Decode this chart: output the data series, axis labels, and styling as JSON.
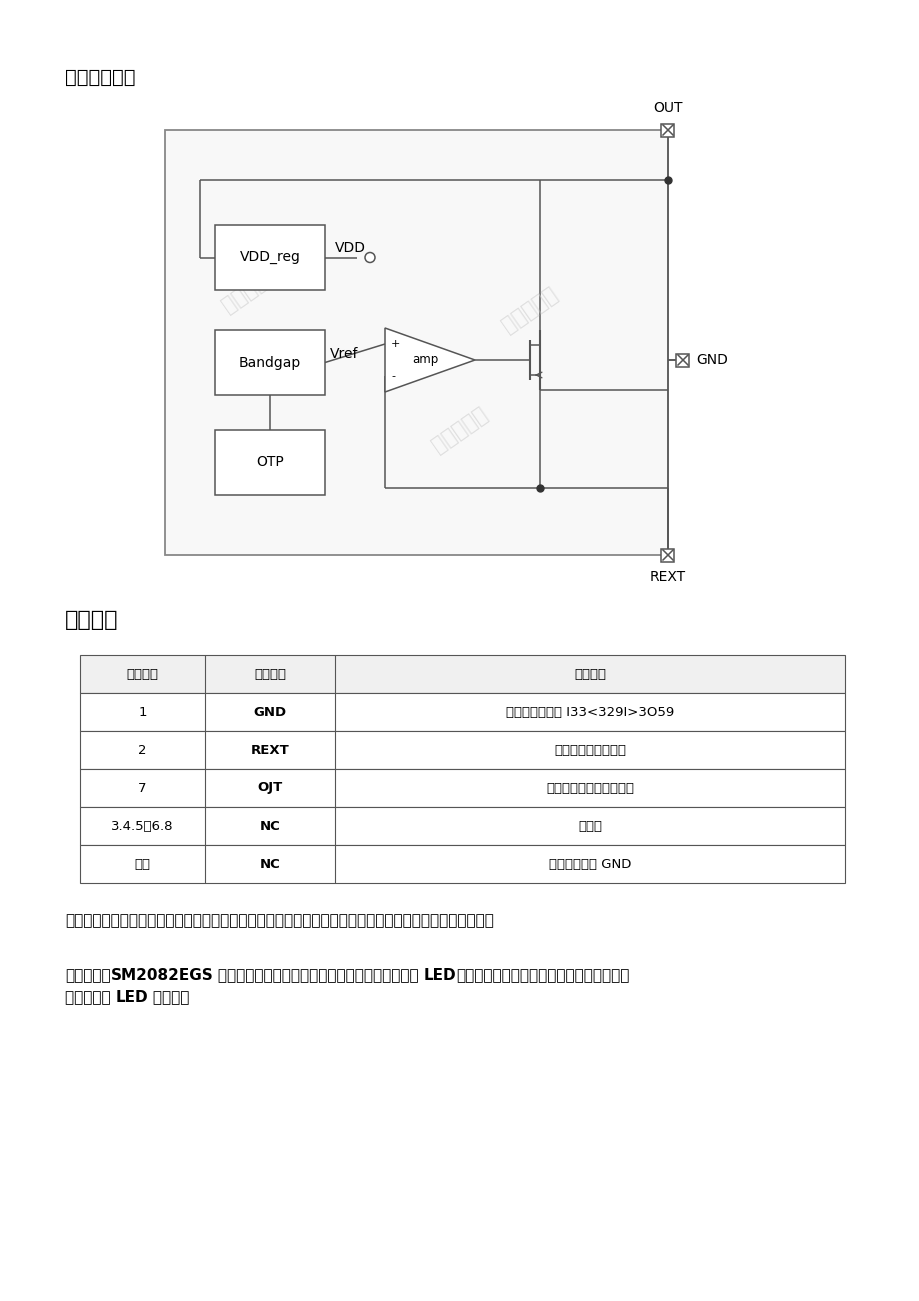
{
  "title_section": "内部功能框图",
  "pin_section": "管脚说明",
  "watermark": "钰铭科电子",
  "out_label": "OUT",
  "gnd_label": "GND",
  "rext_label": "REXT",
  "vdd_label": "VDD",
  "vref_label": "Vref",
  "amp_label": "amp",
  "vdd_reg_label": "VDD_reg",
  "bandgap_label": "Bandgap",
  "otp_label": "OTP",
  "table_headers": [
    "管脚序号",
    "管脚名称",
    "管脚说明"
  ],
  "table_rows": [
    [
      "1",
      "GND",
      "芯片地技术支持 I33<329I>3O59"
    ],
    [
      "2",
      "REXT",
      "输出电流值设置戕口"
    ],
    [
      "7",
      "OJT",
      "电源输入与恒流输出端口"
    ],
    [
      "3.4.5、6.8",
      "NC",
      "悬空脚"
    ],
    [
      "村底",
      "NC",
      "应用时村底接 GND"
    ]
  ],
  "para1": "最后，这款芯片还具有过温调节功能，这意味着它能够在温度过高时自动调节电流，防止因为过热而损坏。",
  "para2_line1_segs": [
    [
      "总的来说，",
      false
    ],
    [
      "SM2082EGS",
      true
    ],
    [
      " 是一款性能优秀、结构简单、可靠性强、成本低的 ",
      false
    ],
    [
      "LED",
      true
    ],
    [
      "控制芯片，非常适合用于各种需要高亮度和",
      false
    ]
  ],
  "para2_line2_segs": [
    [
      "稳定亮度的 ",
      false
    ],
    [
      "LED",
      true
    ],
    [
      " 灯具中。",
      false
    ]
  ],
  "bg_color": "#ffffff",
  "line_color": "#555555",
  "text_color": "#000000",
  "watermark_color": "#cccccc",
  "table_line_color": "#555555",
  "header_bg": "#f0f0f0"
}
